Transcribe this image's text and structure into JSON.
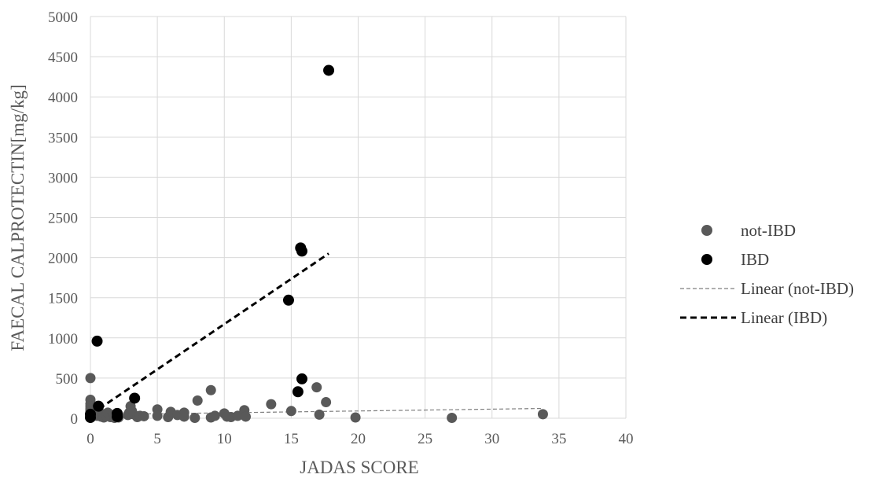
{
  "chart_data": {
    "type": "scatter",
    "title": "",
    "xlabel": "JADAS SCORE",
    "ylabel": "FAECAL CALPROTECTIN[mg/kg]",
    "xlim": [
      0,
      40
    ],
    "ylim": [
      0,
      5000
    ],
    "x_ticks": [
      0,
      5,
      10,
      15,
      20,
      25,
      30,
      35,
      40
    ],
    "y_ticks": [
      0,
      500,
      1000,
      1500,
      2000,
      2500,
      3000,
      3500,
      4000,
      4500,
      5000
    ],
    "grid": true,
    "legend_position": "right",
    "series": [
      {
        "name": "not-IBD",
        "color": "#595959",
        "points": [
          [
            0,
            500
          ],
          [
            0,
            230
          ],
          [
            0,
            180
          ],
          [
            0,
            150
          ],
          [
            0,
            120
          ],
          [
            0,
            100
          ],
          [
            0,
            80
          ],
          [
            0,
            60
          ],
          [
            0,
            40
          ],
          [
            0,
            20
          ],
          [
            0,
            5
          ],
          [
            0.3,
            60
          ],
          [
            0.5,
            30
          ],
          [
            0.6,
            90
          ],
          [
            0.8,
            20
          ],
          [
            1,
            50
          ],
          [
            1,
            10
          ],
          [
            1.2,
            30
          ],
          [
            1.3,
            70
          ],
          [
            1.5,
            15
          ],
          [
            1.7,
            40
          ],
          [
            1.8,
            5
          ],
          [
            2,
            60
          ],
          [
            2,
            20
          ],
          [
            2.1,
            10
          ],
          [
            2.8,
            40
          ],
          [
            2.9,
            70
          ],
          [
            3,
            150
          ],
          [
            3.1,
            90
          ],
          [
            3.2,
            50
          ],
          [
            3.5,
            15
          ],
          [
            3.7,
            30
          ],
          [
            4,
            25
          ],
          [
            5,
            110
          ],
          [
            5,
            30
          ],
          [
            5.8,
            15
          ],
          [
            6,
            80
          ],
          [
            6.5,
            40
          ],
          [
            7,
            70
          ],
          [
            7,
            20
          ],
          [
            7.8,
            5
          ],
          [
            8,
            220
          ],
          [
            9,
            350
          ],
          [
            9,
            10
          ],
          [
            9.3,
            30
          ],
          [
            10,
            60
          ],
          [
            10.2,
            20
          ],
          [
            10.5,
            15
          ],
          [
            11,
            30
          ],
          [
            11.5,
            100
          ],
          [
            11.6,
            20
          ],
          [
            13.5,
            175
          ],
          [
            15,
            90
          ],
          [
            16.9,
            385
          ],
          [
            17.1,
            45
          ],
          [
            17.6,
            200
          ],
          [
            19.8,
            10
          ],
          [
            27,
            5
          ],
          [
            33.8,
            50
          ]
        ]
      },
      {
        "name": "IBD",
        "color": "#000000",
        "points": [
          [
            0,
            50
          ],
          [
            0,
            10
          ],
          [
            0.5,
            960
          ],
          [
            0.6,
            150
          ],
          [
            2,
            60
          ],
          [
            2,
            20
          ],
          [
            3.3,
            250
          ],
          [
            14.8,
            1470
          ],
          [
            15.5,
            330
          ],
          [
            15.7,
            2120
          ],
          [
            15.8,
            2080
          ],
          [
            15.8,
            490
          ],
          [
            17.8,
            4330
          ]
        ]
      },
      {
        "name": "Linear (not-IBD)",
        "type": "trendline",
        "dash": "fine",
        "color": "#7f7f7f",
        "x": [
          0,
          33.8
        ],
        "y": [
          45,
          122
        ]
      },
      {
        "name": "Linear (IBD)",
        "type": "trendline",
        "dash": "bold",
        "color": "#000000",
        "x": [
          0,
          17.8
        ],
        "y": [
          45,
          2050
        ]
      }
    ]
  }
}
